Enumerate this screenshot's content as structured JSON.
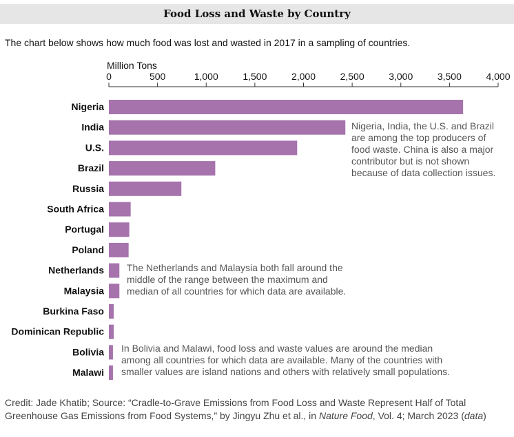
{
  "header": {
    "title": "Food Loss and Waste by Country",
    "intro": "The chart below shows how much food was lost and wasted in 2017 in a sampling of countries."
  },
  "chart_data": {
    "type": "bar",
    "orientation": "horizontal",
    "title": "Food Loss and Waste by Country",
    "xlabel": "Million Tons",
    "xlim": [
      0,
      4000
    ],
    "xticks": [
      0,
      500,
      1000,
      1500,
      2000,
      2500,
      3000,
      3500,
      4000
    ],
    "xtick_labels": [
      "0",
      "500",
      "1,000",
      "1,500",
      "2,000",
      "2,500",
      "3,000",
      "3,500",
      "4,000"
    ],
    "grid": false,
    "bar_color": "#a673ad",
    "categories": [
      "Nigeria",
      "India",
      "U.S.",
      "Brazil",
      "Russia",
      "South Africa",
      "Portugal",
      "Poland",
      "Netherlands",
      "Malaysia",
      "Burkina Faso",
      "Dominican Republic",
      "Bolivia",
      "Malawi"
    ],
    "values": [
      3640,
      2430,
      1935,
      1093,
      745,
      224,
      210,
      203,
      108,
      108,
      50,
      50,
      42,
      42
    ],
    "annotations": [
      [
        "Nigeria, India, the U.S. and Brazil",
        "are among the top producers of",
        "food waste. China is also a major",
        "contributor but is not shown",
        "because of data collection issues."
      ],
      [
        "The Netherlands and Malaysia both fall around the",
        "middle of the range between the maximum and",
        "median of all countries for which data are available."
      ],
      [
        "In Bolivia and Malawi, food loss and waste values are around the median",
        "among all countries for which data are available. Many of the countries with",
        "smaller values are island nations and others with relatively small populations."
      ]
    ]
  },
  "credit": {
    "prefix": "Credit: Jade Khatib; Source: “Cradle-to-Grave Emissions from Food Loss and Waste Represent Half of Total Greenhouse Gas Emissions from Food Systems,” by Jingyu Zhu et al., in ",
    "journal": "Nature Food",
    "mid": ", Vol. 4; March 2023 (",
    "data_link": "data",
    "suffix": ")"
  }
}
